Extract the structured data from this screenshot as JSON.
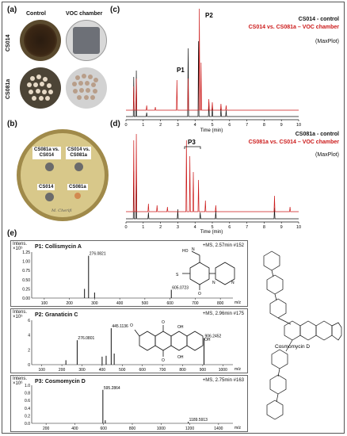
{
  "panels": {
    "a": "(a)",
    "b": "(b)",
    "c": "(c)",
    "d": "(d)",
    "e": "(e)"
  },
  "panel_a": {
    "col_control": "Control",
    "col_voc": "VOC chamber",
    "row_1": "CS014",
    "row_2": "CS081a"
  },
  "panel_b": {
    "plate_labels": [
      "CS081a vs. CS014",
      "CS014 vs. CS081a",
      "CS014",
      "CS081a"
    ],
    "plate_label_1_line1": "CS081a vs.",
    "plate_label_1_line2": "CS014",
    "plate_label_2_line1": "CS014 vs.",
    "plate_label_2_line2": "CS081a",
    "plate_label_3": "CS014",
    "plate_label_4": "CS081a",
    "handwriting": "M. Cherifi"
  },
  "panel_c": {
    "legend_black": "CS014 - control",
    "legend_red": "CS014 vs. CS081a – VOC chamber",
    "maxplot": "(MaxPlot)",
    "peak_label_1": "P1",
    "peak_label_2": "P2",
    "xlabel": "Time (min)",
    "ticks": [
      "0",
      "1",
      "2",
      "3",
      "4",
      "5",
      "6",
      "7",
      "8",
      "9",
      "10"
    ]
  },
  "panel_d": {
    "legend_black": "CS081a - control",
    "legend_red": "CS081a vs. CS014 – VOC chamber",
    "maxplot": "(MaxPlot)",
    "peak_label": "P3",
    "xlabel": "Time (min)",
    "ticks": [
      "0",
      "1",
      "2",
      "3",
      "4",
      "5",
      "6",
      "7",
      "8",
      "9",
      "10"
    ]
  },
  "panel_e": {
    "ms1": {
      "title": "P1: Collismycin A",
      "header": "+MS, 2.57min #152",
      "y_unit": "Intens. ×10⁵",
      "yticks": [
        "1.25",
        "1.00",
        "0.75",
        "0.50",
        "0.25",
        "0.00"
      ],
      "xticks": [
        "100",
        "200",
        "300",
        "400",
        "500",
        "600",
        "700",
        "800"
      ],
      "peaks": [
        "276.0821",
        "605.0723"
      ],
      "mz": "m/z"
    },
    "ms2": {
      "title": "P2: Granaticin C",
      "header": "+MS, 2.96min #175",
      "y_unit": "Intens. ×10⁵",
      "yticks": [
        "6",
        "4",
        "2",
        "0"
      ],
      "xticks": [
        "100",
        "200",
        "300",
        "400",
        "500",
        "600",
        "700",
        "800",
        "900",
        "1000"
      ],
      "peaks": [
        "445.1136",
        "276.0801",
        "906.2452"
      ],
      "mz": "m/z"
    },
    "ms3": {
      "title": "P3: Cosmomycin D",
      "header": "+MS, 2.75min #163",
      "y_unit": "Intens. ×10⁶",
      "yticks": [
        "1.0",
        "0.8",
        "0.6",
        "0.4",
        "0.2",
        "0.0"
      ],
      "xticks": [
        "200",
        "400",
        "600",
        "800",
        "1000",
        "1200",
        "1400"
      ],
      "peaks": [
        "595.2864",
        "1189.5913"
      ],
      "mz": "m/z"
    },
    "structure_label": "Cosmomycin D"
  },
  "colors": {
    "black_trace": "#111111",
    "red_trace": "#cc1a1a"
  }
}
